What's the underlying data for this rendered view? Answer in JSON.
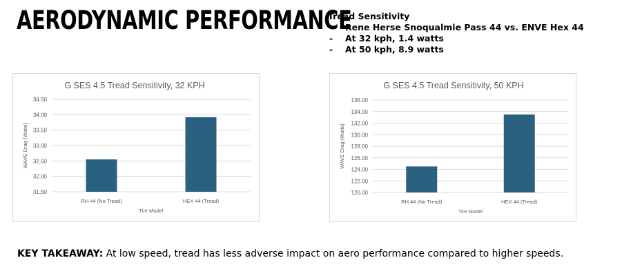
{
  "header": {
    "title": "AERODYNAMIC PERFORMANCE"
  },
  "notes": {
    "heading": "Tread Sensitivity",
    "items": [
      "Rene Herse Snoqualmie Pass 44 vs. ENVE Hex 44",
      "At 32 kph, 1.4 watts",
      "At 50 kph, 8.9 watts"
    ]
  },
  "takeaway": {
    "label": "KEY TAKEAWAY:",
    "text": " At low speed, tread has less adverse impact on aero performance compared to higher speeds."
  },
  "colors": {
    "bar": "#2a6080",
    "grid": "#d9d9d9",
    "text": "#595959"
  },
  "chart_data": [
    {
      "type": "bar",
      "title": "G SES 4.5 Tread Sensitivity, 32 KPH",
      "xlabel": "Tire Model",
      "ylabel": "WAVE Drag (Watts)",
      "categories": [
        "RH 44 (No Tread)",
        "HEX 44 (Tread)"
      ],
      "values": [
        32.55,
        33.92
      ],
      "ylim": [
        31.5,
        34.5
      ],
      "yticks": [
        "31.50",
        "32.00",
        "32.50",
        "33.00",
        "33.50",
        "34.00",
        "34.50"
      ],
      "grid": true
    },
    {
      "type": "bar",
      "title": "G SES 4.5 Tread Sensitivity, 50 KPH",
      "xlabel": "Tire Model",
      "ylabel": "WAVE Drag (Watts)",
      "categories": [
        "RH 44 (No Tread)",
        "HEX 44 (Tread)"
      ],
      "values": [
        124.5,
        133.5
      ],
      "ylim": [
        120,
        136
      ],
      "yticks": [
        "120.00",
        "122.00",
        "124.00",
        "126.00",
        "128.00",
        "130.00",
        "132.00",
        "134.00",
        "136.00"
      ],
      "grid": true
    }
  ]
}
